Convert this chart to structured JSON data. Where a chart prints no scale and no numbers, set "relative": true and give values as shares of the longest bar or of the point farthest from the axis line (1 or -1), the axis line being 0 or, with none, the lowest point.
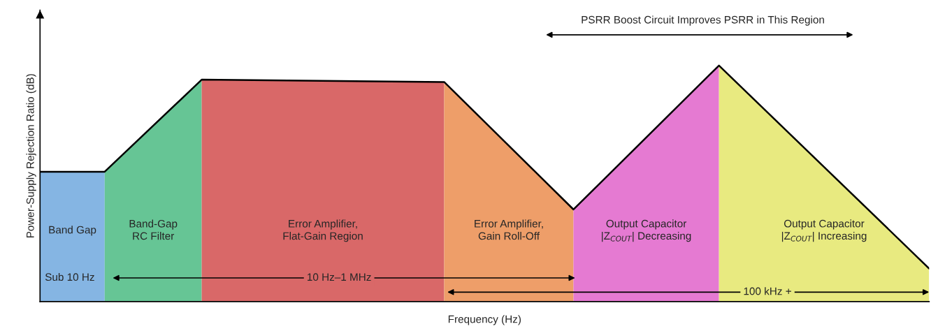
{
  "chart_data": {
    "type": "area",
    "relative": true,
    "legend": false,
    "grid": false,
    "tick_labels": false,
    "xlabel": "Frequency (Hz)",
    "ylabel": "Power-Supply Rejection Ratio (dB)",
    "categories": [
      null,
      null,
      null,
      null,
      null,
      null,
      null,
      null,
      null,
      null,
      null,
      null,
      null,
      null,
      null,
      null,
      null,
      null,
      null,
      null,
      null,
      null,
      null,
      null,
      null,
      null,
      null,
      null,
      null,
      null,
      null,
      null,
      null,
      null,
      null,
      null,
      null,
      null,
      null,
      null,
      null,
      null,
      null,
      null,
      null,
      null,
      null,
      null,
      null,
      null,
      null,
      null,
      null,
      null,
      null,
      null
    ],
    "series": [
      {
        "name": "Band Gap",
        "color": "#85b5e3",
        "values": [
          0.55,
          null,
          null,
          null,
          0.55,
          null,
          null,
          null,
          null,
          null,
          null,
          null,
          null,
          null,
          null,
          null,
          null,
          null,
          null,
          null,
          null,
          null,
          null,
          null,
          null,
          null,
          null,
          null,
          null,
          null,
          null,
          null,
          null,
          null,
          null,
          null,
          null,
          null,
          null,
          null,
          null,
          null,
          null,
          null,
          null,
          null,
          null,
          null,
          null,
          null,
          null,
          null,
          null,
          null,
          null,
          null
        ]
      },
      {
        "name": "Band-Gap\nRC Filter",
        "color": "#66c595",
        "values": [
          null,
          null,
          null,
          null,
          0.55,
          null,
          null,
          null,
          null,
          null,
          0.94,
          null,
          null,
          null,
          null,
          null,
          null,
          null,
          null,
          null,
          null,
          null,
          null,
          null,
          null,
          null,
          null,
          null,
          null,
          null,
          null,
          null,
          null,
          null,
          null,
          null,
          null,
          null,
          null,
          null,
          null,
          null,
          null,
          null,
          null,
          null,
          null,
          null,
          null,
          null,
          null,
          null,
          null,
          null,
          null,
          null
        ]
      },
      {
        "name": "Error Amplifier,\nFlat-Gain Region",
        "color": "#d96868",
        "values": [
          null,
          null,
          null,
          null,
          null,
          null,
          null,
          null,
          null,
          null,
          0.94,
          null,
          null,
          null,
          null,
          null,
          null,
          null,
          null,
          null,
          null,
          null,
          null,
          null,
          null,
          0.93,
          null,
          null,
          null,
          null,
          null,
          null,
          null,
          null,
          null,
          null,
          null,
          null,
          null,
          null,
          null,
          null,
          null,
          null,
          null,
          null,
          null,
          null,
          null,
          null,
          null,
          null,
          null,
          null,
          null,
          null
        ]
      },
      {
        "name": "Error Amplifier,\nGain Roll-Off",
        "color": "#ee9e69",
        "values": [
          null,
          null,
          null,
          null,
          null,
          null,
          null,
          null,
          null,
          null,
          null,
          null,
          null,
          null,
          null,
          null,
          null,
          null,
          null,
          null,
          null,
          null,
          null,
          null,
          null,
          0.93,
          null,
          null,
          null,
          null,
          null,
          null,
          null,
          0.39,
          null,
          null,
          null,
          null,
          null,
          null,
          null,
          null,
          null,
          null,
          null,
          null,
          null,
          null,
          null,
          null,
          null,
          null,
          null,
          null,
          null,
          null
        ]
      },
      {
        "name": "Output Capacitor\n|Z$_{COUT}$| Decreasing",
        "color": "#e57ad2",
        "values": [
          null,
          null,
          null,
          null,
          null,
          null,
          null,
          null,
          null,
          null,
          null,
          null,
          null,
          null,
          null,
          null,
          null,
          null,
          null,
          null,
          null,
          null,
          null,
          null,
          null,
          null,
          null,
          null,
          null,
          null,
          null,
          null,
          null,
          0.39,
          null,
          null,
          null,
          null,
          null,
          null,
          null,
          null,
          1,
          null,
          null,
          null,
          null,
          null,
          null,
          null,
          null,
          null,
          null,
          null,
          null,
          null
        ]
      },
      {
        "name": "Output Capacitor\n|Z$_{COUT}$| Increasing",
        "color": "#e8ea80",
        "values": [
          null,
          null,
          null,
          null,
          null,
          null,
          null,
          null,
          null,
          null,
          null,
          null,
          null,
          null,
          null,
          null,
          null,
          null,
          null,
          null,
          null,
          null,
          null,
          null,
          null,
          null,
          null,
          null,
          null,
          null,
          null,
          null,
          null,
          null,
          null,
          null,
          null,
          null,
          null,
          null,
          null,
          null,
          1,
          null,
          null,
          null,
          null,
          null,
          null,
          null,
          null,
          null,
          null,
          null,
          null,
          0.14
        ]
      },
      {
        "type": "line",
        "color": "#000000",
        "values": [
          0.55,
          null,
          null,
          null,
          0.55,
          null,
          null,
          null,
          null,
          null,
          0.94,
          null,
          null,
          null,
          null,
          null,
          null,
          null,
          null,
          null,
          null,
          null,
          null,
          null,
          null,
          0.93,
          null,
          null,
          null,
          null,
          null,
          null,
          null,
          0.39,
          null,
          null,
          null,
          null,
          null,
          null,
          null,
          null,
          1,
          null,
          null,
          null,
          null,
          null,
          null,
          null,
          null,
          null,
          null,
          null,
          null,
          0.14
        ]
      }
    ],
    "annotations": [
      "PSRR Boost Circuit Improves PSRR in This Region",
      "Sub 10 Hz",
      "10 Hz–1 MHz",
      "100 kHz +"
    ]
  }
}
